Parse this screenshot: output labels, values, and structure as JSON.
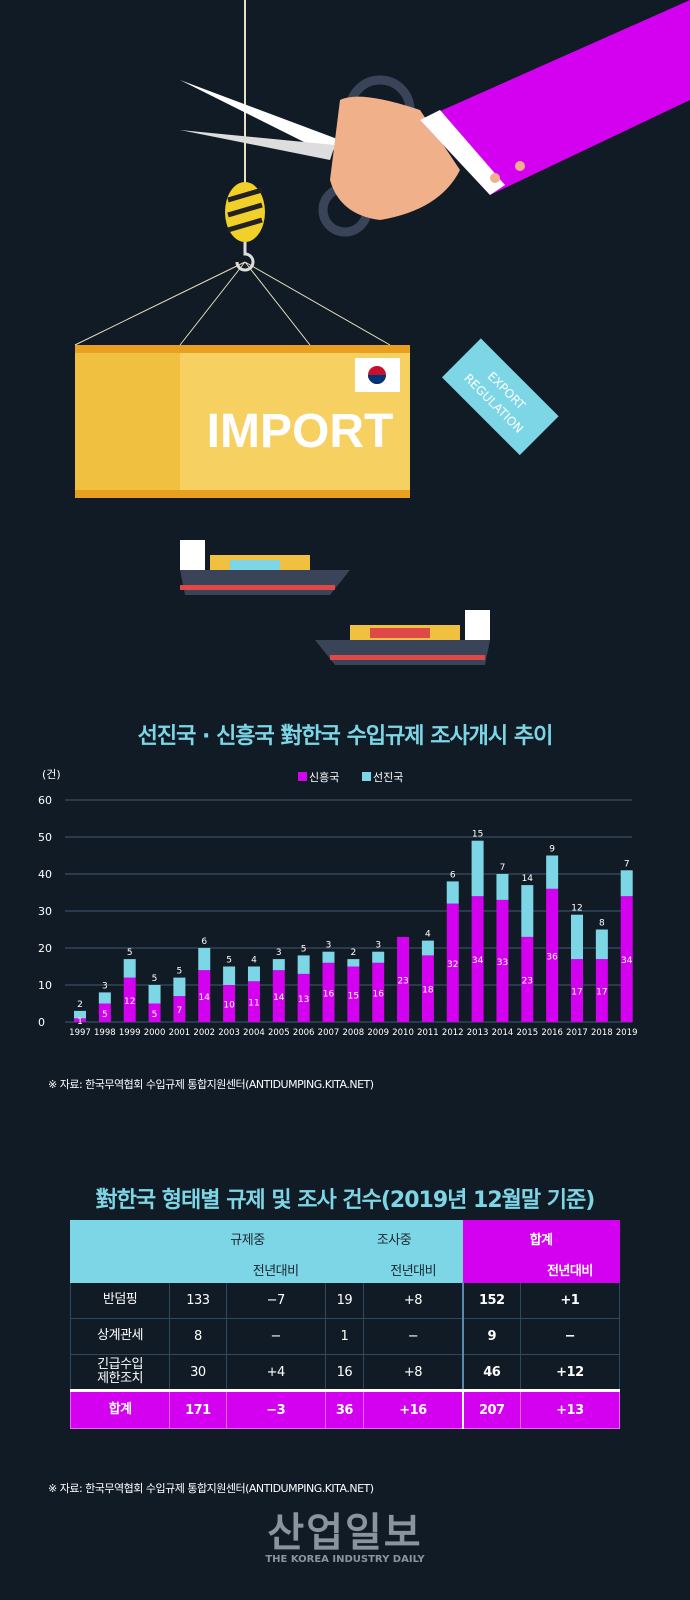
{
  "illustration": {
    "container_text": "IMPORT",
    "tag_text": [
      "EXPORT",
      "REGULATION"
    ]
  },
  "chart_title": "선진국 · 신흥국 對한국 수입규제 조사개시 추이",
  "chart_source": "※ 자료: 한국무역협회 수입규제 통합지원센터(ANTIDUMPING.KITA.NET)",
  "chart_data": {
    "type": "bar",
    "stacked": true,
    "unit_label": "(건)",
    "categories": [
      "1997",
      "1998",
      "1999",
      "2000",
      "2001",
      "2002",
      "2003",
      "2004",
      "2005",
      "2006",
      "2007",
      "2008",
      "2009",
      "2010",
      "2011",
      "2012",
      "2013",
      "2014",
      "2015",
      "2016",
      "2017",
      "2018",
      "2019"
    ],
    "series": [
      {
        "name": "신흥국",
        "color": "#d400f0",
        "values": [
          1,
          5,
          12,
          5,
          7,
          14,
          10,
          11,
          14,
          13,
          16,
          15,
          16,
          23,
          18,
          32,
          34,
          33,
          23,
          36,
          17,
          17,
          34
        ]
      },
      {
        "name": "선진국",
        "color": "#7dd6e6",
        "values": [
          2,
          3,
          5,
          5,
          5,
          6,
          5,
          4,
          3,
          5,
          3,
          2,
          3,
          0,
          4,
          6,
          15,
          7,
          14,
          9,
          12,
          8,
          7
        ]
      }
    ],
    "ylim": [
      0,
      60
    ],
    "yticks": [
      0,
      10,
      20,
      30,
      40,
      50,
      60
    ],
    "grid": true,
    "legend": "top-center"
  },
  "table_title": "對한국 형태별 규제 및 조사 건수(2019년 12월말 기준)",
  "table": {
    "headers": {
      "regulating": "규제중",
      "investigating": "조사중",
      "total": "합계",
      "yoy": "전년대비"
    },
    "rows": [
      {
        "label": "반덤핑",
        "values": [
          "133",
          "−7",
          "19",
          "+8",
          "152",
          "+1"
        ]
      },
      {
        "label": "상계관세",
        "values": [
          "8",
          "−",
          "1",
          "−",
          "9",
          "−"
        ]
      },
      {
        "label": "긴급수입\n제한조치",
        "values": [
          "30",
          "+4",
          "16",
          "+8",
          "46",
          "+12"
        ]
      }
    ],
    "total_row": {
      "label": "합계",
      "values": [
        "171",
        "−3",
        "36",
        "+16",
        "207",
        "+13"
      ]
    }
  },
  "table_source": "※ 자료: 한국무역협회 수입규제 통합지원센터(ANTIDUMPING.KITA.NET)",
  "logo": {
    "name": "산업일보",
    "sub": "THE KOREA INDUSTRY DAILY"
  }
}
